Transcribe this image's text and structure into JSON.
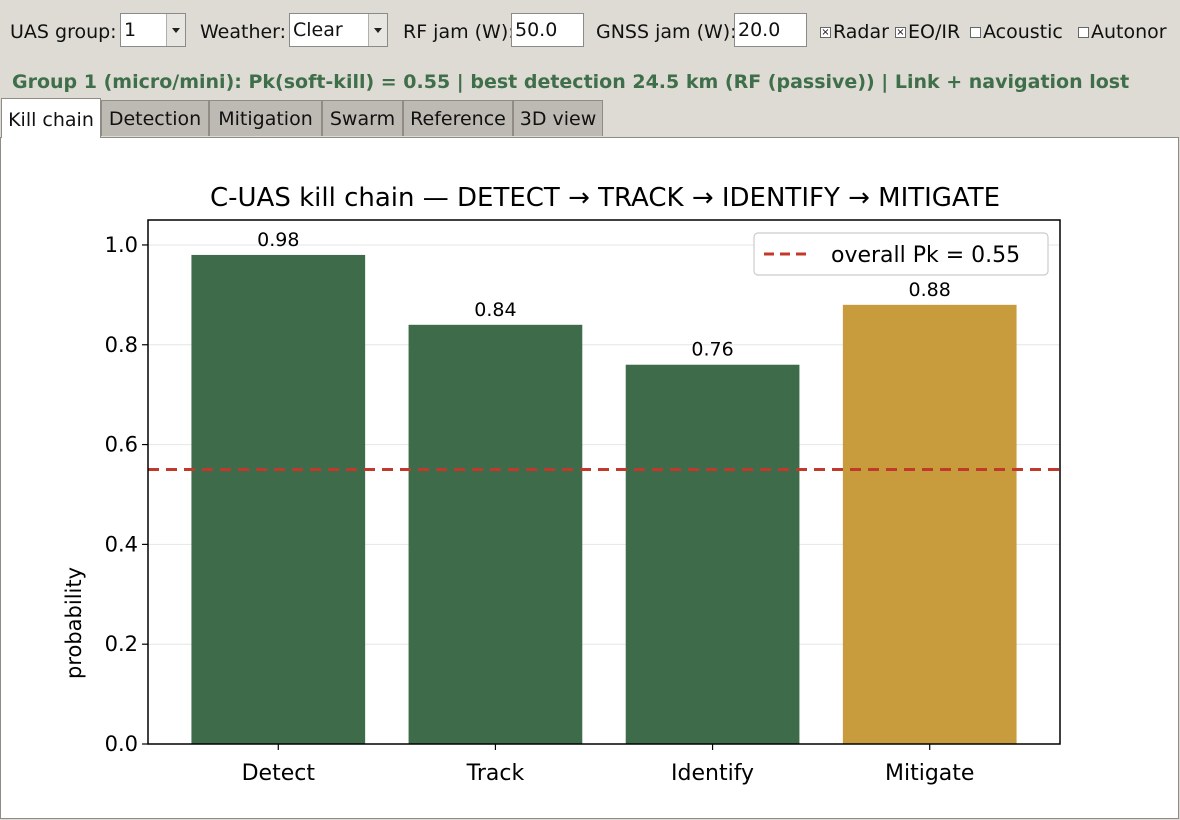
{
  "toolbar": {
    "uas_group_label": "UAS group:",
    "uas_group_value": "1",
    "weather_label": "Weather:",
    "weather_value": "Clear",
    "rf_jam_label": "RF jam (W):",
    "rf_jam_value": "50.0",
    "gnss_jam_label": "GNSS jam (W):",
    "gnss_jam_value": "20.0",
    "checks": [
      {
        "label": "Radar",
        "checked": true
      },
      {
        "label": "EO/IR",
        "checked": true
      },
      {
        "label": "Acoustic",
        "checked": false
      },
      {
        "label": "Autonor",
        "checked": false
      }
    ]
  },
  "status_line": "Group 1 (micro/mini): Pk(soft-kill) = 0.55   |   best detection 24.5 km (RF (passive))   |   Link + navigation lost",
  "tabs": [
    {
      "label": "Kill chain",
      "active": true
    },
    {
      "label": "Detection",
      "active": false
    },
    {
      "label": "Mitigation",
      "active": false
    },
    {
      "label": "Swarm",
      "active": false
    },
    {
      "label": "Reference",
      "active": false
    },
    {
      "label": "3D view",
      "active": false
    }
  ],
  "chart_data": {
    "type": "bar",
    "title": "C-UAS kill chain — DETECT → TRACK → IDENTIFY → MITIGATE",
    "xlabel": "",
    "ylabel": "probability",
    "categories": [
      "Detect",
      "Track",
      "Identify",
      "Mitigate"
    ],
    "values": [
      0.98,
      0.84,
      0.76,
      0.88
    ],
    "value_labels": [
      "0.98",
      "0.84",
      "0.76",
      "0.88"
    ],
    "bar_colors": [
      "#3e6c4a",
      "#3e6c4a",
      "#3e6c4a",
      "#c89b3c"
    ],
    "ylim": [
      0,
      1.05
    ],
    "yticks": [
      0.0,
      0.2,
      0.4,
      0.6,
      0.8,
      1.0
    ],
    "ytick_labels": [
      "0.0",
      "0.2",
      "0.4",
      "0.6",
      "0.8",
      "1.0"
    ],
    "grid": "horizontal",
    "reference_line": {
      "value": 0.55,
      "label": "overall Pk = 0.55",
      "color": "#c0392b",
      "style": "dashed"
    },
    "legend": "top-right"
  }
}
